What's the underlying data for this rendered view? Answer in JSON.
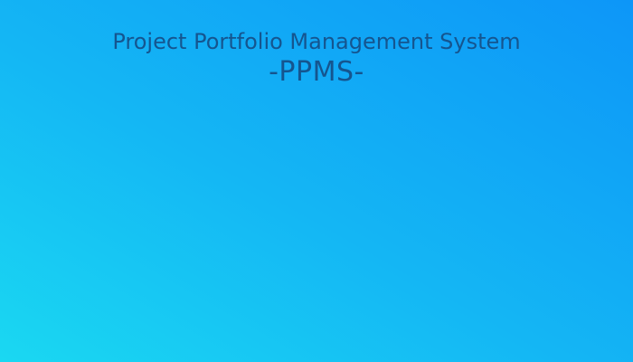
{
  "header": {
    "title": "Project Portfolio Management System",
    "acronym": "-PPMS-"
  },
  "colors": {
    "background_start": "#1ad8f2",
    "background_end": "#0d96f8",
    "title_text": "#15558f"
  }
}
